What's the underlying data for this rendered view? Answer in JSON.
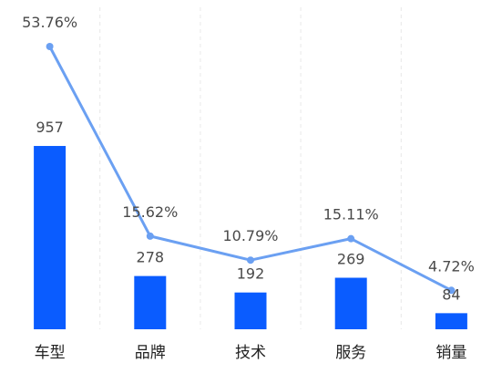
{
  "chart_data": {
    "type": "bar",
    "categories": [
      "车型",
      "品牌",
      "技术",
      "服务",
      "销量"
    ],
    "series": [
      {
        "type": "bar",
        "values": [
          957,
          278,
          192,
          269,
          84
        ],
        "labels": [
          "957",
          "278",
          "192",
          "269",
          "84"
        ]
      },
      {
        "type": "line",
        "values": [
          53.76,
          15.62,
          10.79,
          15.11,
          4.72
        ],
        "labels": [
          "53.76%",
          "15.62%",
          "10.79%",
          "15.11%",
          "4.72%"
        ]
      }
    ],
    "bar_ylim": [
      0,
      1000
    ],
    "line_ylim": [
      0,
      60
    ],
    "grid": true,
    "colors": {
      "bar": "#0a5cff",
      "line": "#6ba0f2",
      "grid": "#e8e8e8"
    }
  }
}
